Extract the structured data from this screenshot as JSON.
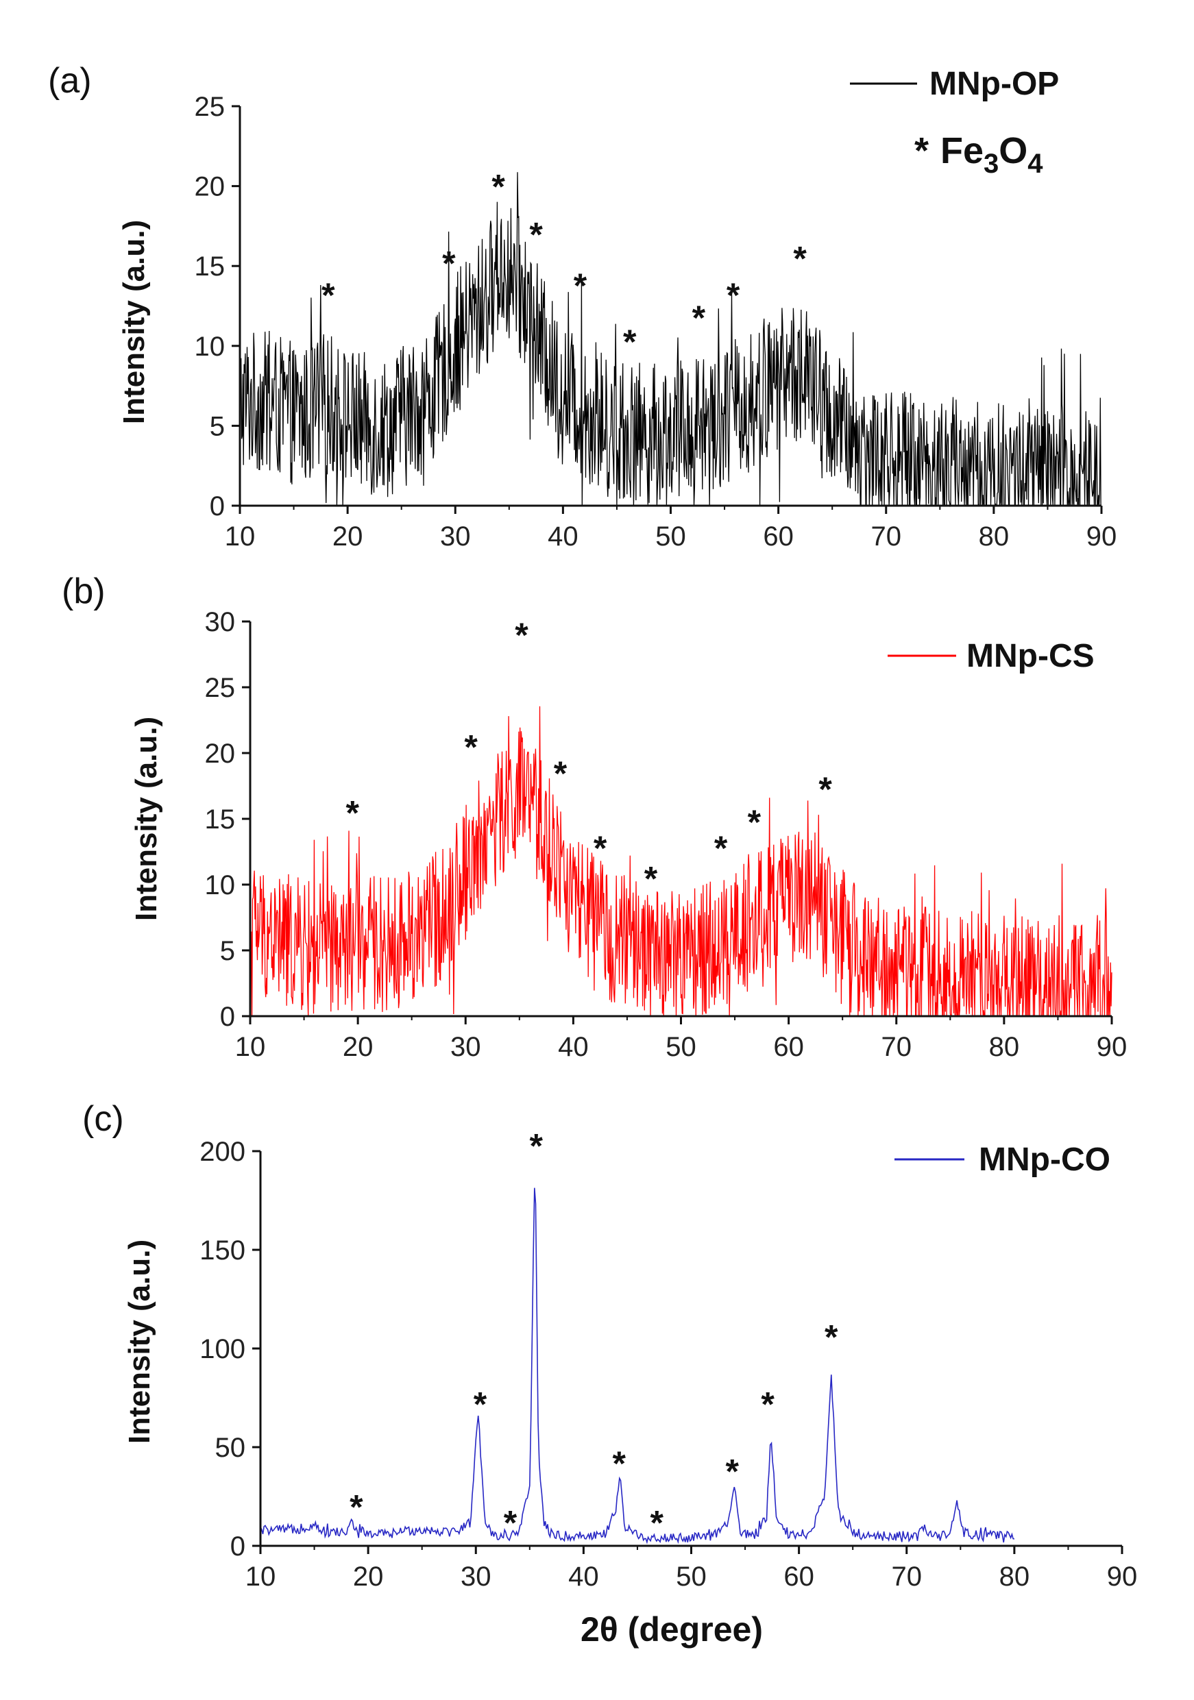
{
  "chart_data": [
    {
      "type": "line",
      "panel_label": "(a)",
      "legend": {
        "label": "MNp-OP",
        "placement": "top-right"
      },
      "note": {
        "star": "*",
        "text": "Fe3O4"
      },
      "xlabel": "",
      "ylabel": "Intensity (a.u.)",
      "xlim": [
        10,
        90
      ],
      "ylim": [
        0,
        25
      ],
      "xticks": [
        10,
        20,
        30,
        40,
        50,
        60,
        70,
        80,
        90
      ],
      "yticks": [
        0,
        5,
        10,
        15,
        20,
        25
      ],
      "grid": false,
      "series": [
        {
          "name": "MNp-OP",
          "color": "#000000",
          "x": [
            10,
            12,
            14,
            16,
            18,
            20,
            22,
            24,
            26,
            28,
            30,
            32,
            33,
            34,
            35,
            36,
            37,
            38,
            40,
            42,
            44,
            46,
            48,
            50,
            52,
            54,
            56,
            58,
            60,
            62,
            64,
            66,
            68,
            70,
            75,
            80,
            85,
            90
          ],
          "y": [
            6.5,
            6.5,
            6,
            5.5,
            6.5,
            5.5,
            5,
            5,
            6,
            7,
            10,
            12,
            13,
            15,
            14.5,
            13.5,
            12,
            10,
            7,
            6,
            5,
            4.5,
            4.5,
            4.5,
            5,
            5.5,
            6,
            6.5,
            8,
            8.5,
            6.5,
            4.5,
            3.5,
            3,
            2.5,
            2,
            2,
            2
          ]
        }
      ],
      "peak_markers": [
        {
          "x": 18.2,
          "y": 13.2
        },
        {
          "x": 29.4,
          "y": 15.2
        },
        {
          "x": 34,
          "y": 20
        },
        {
          "x": 37.5,
          "y": 17
        },
        {
          "x": 41.6,
          "y": 13.8
        },
        {
          "x": 46.2,
          "y": 10.3
        },
        {
          "x": 52.6,
          "y": 11.8
        },
        {
          "x": 55.8,
          "y": 13.2
        },
        {
          "x": 62,
          "y": 15.5
        }
      ]
    },
    {
      "type": "line",
      "panel_label": "(b)",
      "legend": {
        "label": "MNp-CS",
        "placement": "top-right"
      },
      "xlabel": "",
      "ylabel": "Intensity (a.u.)",
      "xlim": [
        10,
        90
      ],
      "ylim": [
        0,
        30
      ],
      "xticks": [
        10,
        20,
        30,
        40,
        50,
        60,
        70,
        80,
        90
      ],
      "yticks": [
        0,
        5,
        10,
        15,
        20,
        25,
        30
      ],
      "grid": false,
      "series": [
        {
          "name": "MNp-CS",
          "color": "#ff0000",
          "x": [
            10,
            12,
            14,
            16,
            18,
            20,
            22,
            24,
            26,
            28,
            30,
            32,
            34,
            35,
            36,
            37,
            38,
            40,
            42,
            44,
            46,
            48,
            50,
            52,
            54,
            56,
            58,
            60,
            62,
            64,
            66,
            68,
            70,
            75,
            80,
            85,
            90
          ],
          "y": [
            7,
            6,
            5.5,
            5,
            5,
            5.5,
            5.5,
            5.5,
            6.5,
            8,
            11,
            14,
            16,
            17,
            16,
            14.5,
            12.5,
            9,
            7,
            6,
            5,
            5,
            4.5,
            5,
            5.5,
            7,
            8,
            9,
            9.5,
            7,
            5,
            4,
            3.5,
            3,
            2.5,
            2.5,
            2.5
          ]
        }
      ],
      "peak_markers": [
        {
          "x": 19.5,
          "y": 15.5
        },
        {
          "x": 30.5,
          "y": 20.5
        },
        {
          "x": 35.2,
          "y": 29
        },
        {
          "x": 38.8,
          "y": 18.5
        },
        {
          "x": 42.5,
          "y": 12.8
        },
        {
          "x": 47.2,
          "y": 10.5
        },
        {
          "x": 53.7,
          "y": 12.8
        },
        {
          "x": 56.8,
          "y": 14.8
        },
        {
          "x": 63.4,
          "y": 17.3
        }
      ]
    },
    {
      "type": "line",
      "panel_label": "(c)",
      "legend": {
        "label": "MNp-CO",
        "placement": "top-right"
      },
      "xlabel": "2θ (degree)",
      "ylabel": "Intensity (a.u.)",
      "xlim": [
        10,
        90
      ],
      "ylim": [
        0,
        200
      ],
      "xticks": [
        10,
        20,
        30,
        40,
        50,
        60,
        70,
        80,
        90
      ],
      "yticks": [
        0,
        50,
        100,
        150,
        200
      ],
      "grid": false,
      "series": [
        {
          "name": "MNp-CO",
          "color": "#2727c4",
          "x": [
            10,
            12,
            14,
            15,
            16,
            18,
            18.5,
            19,
            20,
            22,
            24,
            26,
            28,
            29.5,
            30.2,
            30.9,
            32,
            33,
            34,
            35,
            35.5,
            35.8,
            36.3,
            37,
            38,
            40,
            42,
            43,
            43.4,
            43.8,
            45,
            47,
            50,
            52,
            53.5,
            54,
            54.6,
            56,
            57,
            57.4,
            57.9,
            59,
            61,
            62.4,
            63,
            63.6,
            65,
            68,
            71,
            71.5,
            72,
            74,
            74.6,
            75.3,
            77,
            80
          ],
          "y": [
            8,
            8,
            9,
            11,
            7,
            7,
            12,
            8,
            6,
            6,
            8,
            8,
            7,
            12,
            68,
            10,
            5,
            5,
            6,
            30,
            200,
            50,
            12,
            6,
            5,
            5,
            6,
            18,
            38,
            10,
            5,
            4,
            4,
            5,
            12,
            31,
            6,
            5,
            15,
            58,
            15,
            6,
            6,
            25,
            88,
            20,
            6,
            5,
            5,
            10,
            5,
            5,
            22,
            7,
            5,
            5
          ]
        }
      ],
      "peak_markers": [
        {
          "x": 18.9,
          "y": 20
        },
        {
          "x": 30.4,
          "y": 72
        },
        {
          "x": 33.2,
          "y": 12
        },
        {
          "x": 35.6,
          "y": 203
        },
        {
          "x": 43.3,
          "y": 42
        },
        {
          "x": 46.8,
          "y": 12
        },
        {
          "x": 53.8,
          "y": 38
        },
        {
          "x": 57.1,
          "y": 72
        },
        {
          "x": 63,
          "y": 106
        }
      ]
    }
  ]
}
